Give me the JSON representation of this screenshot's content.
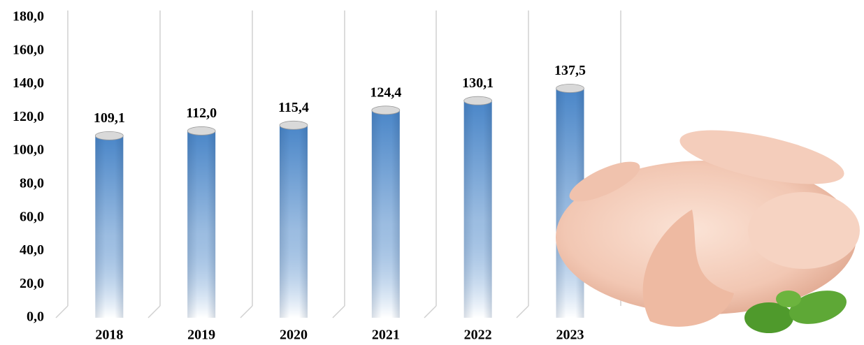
{
  "chart_data": {
    "type": "bar",
    "categories": [
      "2018",
      "2019",
      "2020",
      "2021",
      "2022",
      "2023"
    ],
    "values": [
      109.1,
      112.0,
      115.4,
      124.4,
      130.1,
      137.5
    ],
    "value_labels": [
      "109,1",
      "112,0",
      "115,4",
      "124,4",
      "130,1",
      "137,5"
    ],
    "color": "#4a86c8",
    "ylim": [
      0,
      180
    ],
    "yticks": [
      {
        "value": 0,
        "label": "0,0"
      },
      {
        "value": 20,
        "label": "20,0"
      },
      {
        "value": 40,
        "label": "40,0"
      },
      {
        "value": 60,
        "label": "60,0"
      },
      {
        "value": 80,
        "label": "80,0"
      },
      {
        "value": 100,
        "label": "100,0"
      },
      {
        "value": 120,
        "label": "120,0"
      },
      {
        "value": 140,
        "label": "140,0"
      },
      {
        "value": 160,
        "label": "160,0"
      },
      {
        "value": 180,
        "label": "180,0"
      }
    ]
  }
}
